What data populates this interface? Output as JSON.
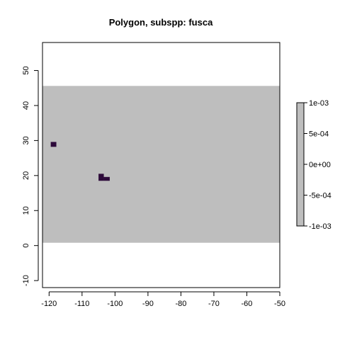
{
  "chart_data": {
    "type": "heatmap",
    "title": "Polygon, subspp: fusca",
    "xlabel": "",
    "ylabel": "",
    "xlim": [
      -122,
      -50
    ],
    "ylim": [
      -12,
      58
    ],
    "x_ticks": [
      -120,
      -110,
      -100,
      -90,
      -80,
      -70,
      -60,
      -50
    ],
    "y_ticks": [
      -10,
      0,
      10,
      20,
      30,
      40,
      50
    ],
    "raster_extent": {
      "x": [
        -122,
        -50
      ],
      "y": [
        0.8,
        45.6
      ]
    },
    "raster_fill_color": "#bebebe",
    "presence_color": "#2d0a3a",
    "presence_cells": [
      {
        "x": [
          -119.5,
          -117.8
        ],
        "y": [
          28.2,
          29.6
        ]
      },
      {
        "x": [
          -105.0,
          -103.4
        ],
        "y": [
          18.5,
          20.5
        ]
      },
      {
        "x": [
          -103.4,
          -101.6
        ],
        "y": [
          18.5,
          19.6
        ]
      }
    ],
    "legend": {
      "placement": "right",
      "ticks": [
        "1e-03",
        "5e-04",
        "0e+00",
        "-5e-04",
        "-1e-03"
      ]
    }
  }
}
